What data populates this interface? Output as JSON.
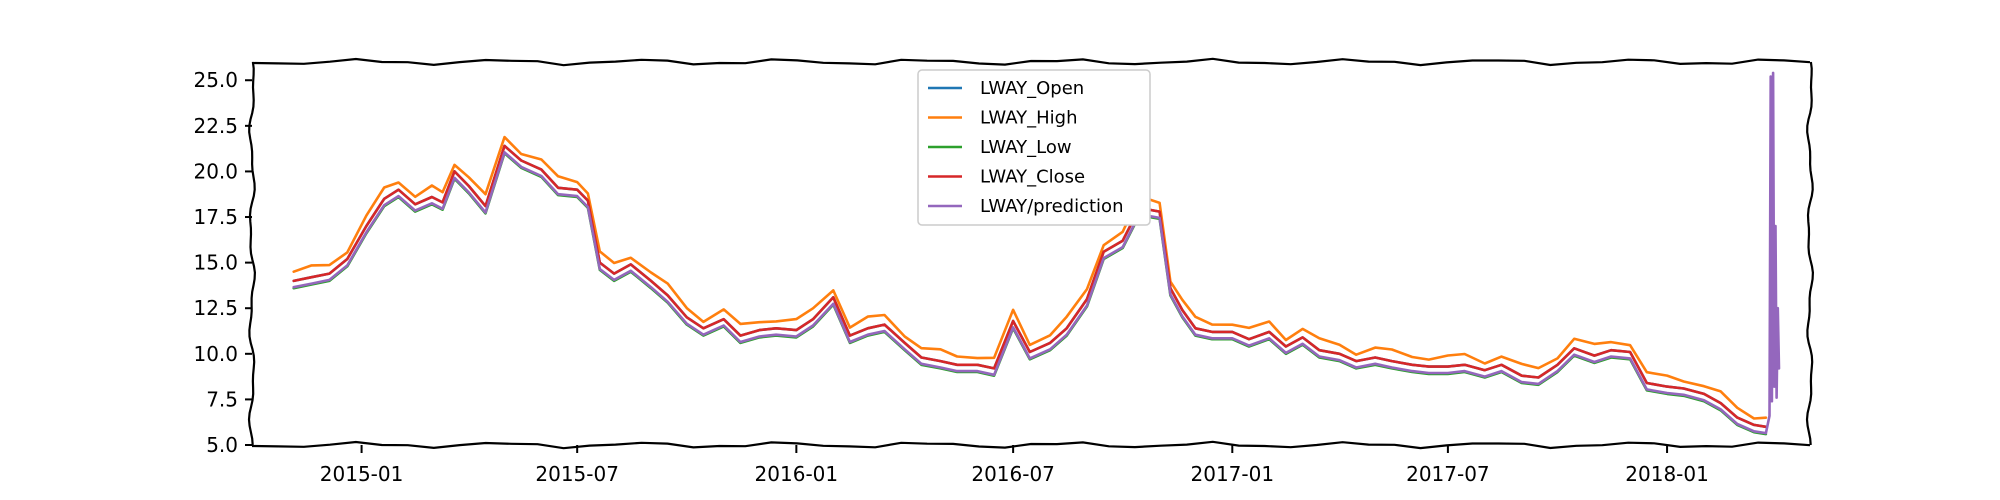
{
  "chart_data": {
    "type": "line",
    "style": "xkcd-sketch",
    "title": "",
    "xlabel": "",
    "ylabel": "",
    "xlim": [
      "2014-10-01",
      "2018-05-01"
    ],
    "ylim": [
      5.0,
      26.0
    ],
    "grid": false,
    "legend_position": "top-center",
    "yticks": [
      {
        "value": 5.0,
        "label": "5.0"
      },
      {
        "value": 7.5,
        "label": "7.5"
      },
      {
        "value": 10.0,
        "label": "10.0"
      },
      {
        "value": 12.5,
        "label": "12.5"
      },
      {
        "value": 15.0,
        "label": "15.0"
      },
      {
        "value": 17.5,
        "label": "17.5"
      },
      {
        "value": 20.0,
        "label": "20.0"
      },
      {
        "value": 22.5,
        "label": "22.5"
      },
      {
        "value": 25.0,
        "label": "25.0"
      }
    ],
    "xticks": [
      {
        "value": "2015-01-01",
        "label": "2015-01"
      },
      {
        "value": "2015-07-01",
        "label": "2015-07"
      },
      {
        "value": "2016-01-01",
        "label": "2016-01"
      },
      {
        "value": "2016-07-01",
        "label": "2016-07"
      },
      {
        "value": "2017-01-01",
        "label": "2017-01"
      },
      {
        "value": "2017-07-01",
        "label": "2017-07"
      },
      {
        "value": "2018-01-01",
        "label": "2018-01"
      }
    ],
    "close_series": [
      [
        "2014-11-05",
        14.0
      ],
      [
        "2014-11-20",
        14.2
      ],
      [
        "2014-12-05",
        14.4
      ],
      [
        "2014-12-20",
        15.2
      ],
      [
        "2015-01-05",
        17.0
      ],
      [
        "2015-01-20",
        18.5
      ],
      [
        "2015-02-01",
        19.0
      ],
      [
        "2015-02-15",
        18.2
      ],
      [
        "2015-03-01",
        18.6
      ],
      [
        "2015-03-10",
        18.3
      ],
      [
        "2015-03-20",
        20.0
      ],
      [
        "2015-04-01",
        19.2
      ],
      [
        "2015-04-15",
        18.1
      ],
      [
        "2015-05-01",
        21.4
      ],
      [
        "2015-05-15",
        20.6
      ],
      [
        "2015-06-01",
        20.1
      ],
      [
        "2015-06-15",
        19.1
      ],
      [
        "2015-07-01",
        19.0
      ],
      [
        "2015-07-10",
        18.4
      ],
      [
        "2015-07-20",
        15.0
      ],
      [
        "2015-08-01",
        14.4
      ],
      [
        "2015-08-15",
        14.9
      ],
      [
        "2015-09-01",
        14.0
      ],
      [
        "2015-09-15",
        13.2
      ],
      [
        "2015-10-01",
        12.0
      ],
      [
        "2015-10-15",
        11.4
      ],
      [
        "2015-11-01",
        11.9
      ],
      [
        "2015-11-15",
        11.0
      ],
      [
        "2015-12-01",
        11.3
      ],
      [
        "2015-12-15",
        11.4
      ],
      [
        "2016-01-01",
        11.3
      ],
      [
        "2016-01-15",
        11.9
      ],
      [
        "2016-02-01",
        13.1
      ],
      [
        "2016-02-15",
        11.0
      ],
      [
        "2016-03-01",
        11.4
      ],
      [
        "2016-03-15",
        11.6
      ],
      [
        "2016-04-01",
        10.6
      ],
      [
        "2016-04-15",
        9.8
      ],
      [
        "2016-05-01",
        9.6
      ],
      [
        "2016-05-15",
        9.4
      ],
      [
        "2016-06-01",
        9.4
      ],
      [
        "2016-06-15",
        9.2
      ],
      [
        "2016-07-01",
        11.8
      ],
      [
        "2016-07-15",
        10.1
      ],
      [
        "2016-08-01",
        10.6
      ],
      [
        "2016-08-15",
        11.4
      ],
      [
        "2016-09-01",
        13.0
      ],
      [
        "2016-09-15",
        15.6
      ],
      [
        "2016-10-01",
        16.2
      ],
      [
        "2016-10-15",
        18.0
      ],
      [
        "2016-11-01",
        17.8
      ],
      [
        "2016-11-10",
        13.6
      ],
      [
        "2016-11-20",
        12.4
      ],
      [
        "2016-12-01",
        11.4
      ],
      [
        "2016-12-15",
        11.2
      ],
      [
        "2017-01-01",
        11.2
      ],
      [
        "2017-01-15",
        10.8
      ],
      [
        "2017-02-01",
        11.2
      ],
      [
        "2017-02-15",
        10.4
      ],
      [
        "2017-03-01",
        10.9
      ],
      [
        "2017-03-15",
        10.2
      ],
      [
        "2017-04-01",
        10.0
      ],
      [
        "2017-04-15",
        9.6
      ],
      [
        "2017-05-01",
        9.8
      ],
      [
        "2017-05-15",
        9.6
      ],
      [
        "2017-06-01",
        9.4
      ],
      [
        "2017-06-15",
        9.3
      ],
      [
        "2017-07-01",
        9.3
      ],
      [
        "2017-07-15",
        9.4
      ],
      [
        "2017-08-01",
        9.1
      ],
      [
        "2017-08-15",
        9.4
      ],
      [
        "2017-09-01",
        8.8
      ],
      [
        "2017-09-15",
        8.7
      ],
      [
        "2017-10-01",
        9.4
      ],
      [
        "2017-10-15",
        10.3
      ],
      [
        "2017-11-01",
        9.9
      ],
      [
        "2017-11-15",
        10.2
      ],
      [
        "2017-12-01",
        10.1
      ],
      [
        "2017-12-15",
        8.4
      ],
      [
        "2018-01-01",
        8.2
      ],
      [
        "2018-01-15",
        8.1
      ],
      [
        "2018-02-01",
        7.8
      ],
      [
        "2018-02-15",
        7.3
      ],
      [
        "2018-03-01",
        6.5
      ],
      [
        "2018-03-15",
        6.1
      ],
      [
        "2018-03-25",
        6.0
      ]
    ],
    "prediction_spike": [
      [
        "2018-03-28",
        6.6
      ],
      [
        "2018-03-29",
        25.2
      ],
      [
        "2018-03-30",
        7.4
      ],
      [
        "2018-03-31",
        25.4
      ],
      [
        "2018-04-01",
        8.2
      ],
      [
        "2018-04-02",
        17.0
      ],
      [
        "2018-04-03",
        7.6
      ],
      [
        "2018-04-04",
        12.5
      ],
      [
        "2018-04-05",
        9.2
      ]
    ],
    "series": [
      {
        "name": "LWAY_Open",
        "color": "#1f77b4",
        "offset": 0.0
      },
      {
        "name": "LWAY_High",
        "color": "#ff7f0e",
        "offset": 0.5
      },
      {
        "name": "LWAY_Low",
        "color": "#2ca02c",
        "offset": -0.4
      },
      {
        "name": "LWAY_Close",
        "color": "#d62728",
        "offset": 0.0
      },
      {
        "name": "LWAY/prediction",
        "color": "#9467bd",
        "offset": -0.35
      }
    ]
  }
}
